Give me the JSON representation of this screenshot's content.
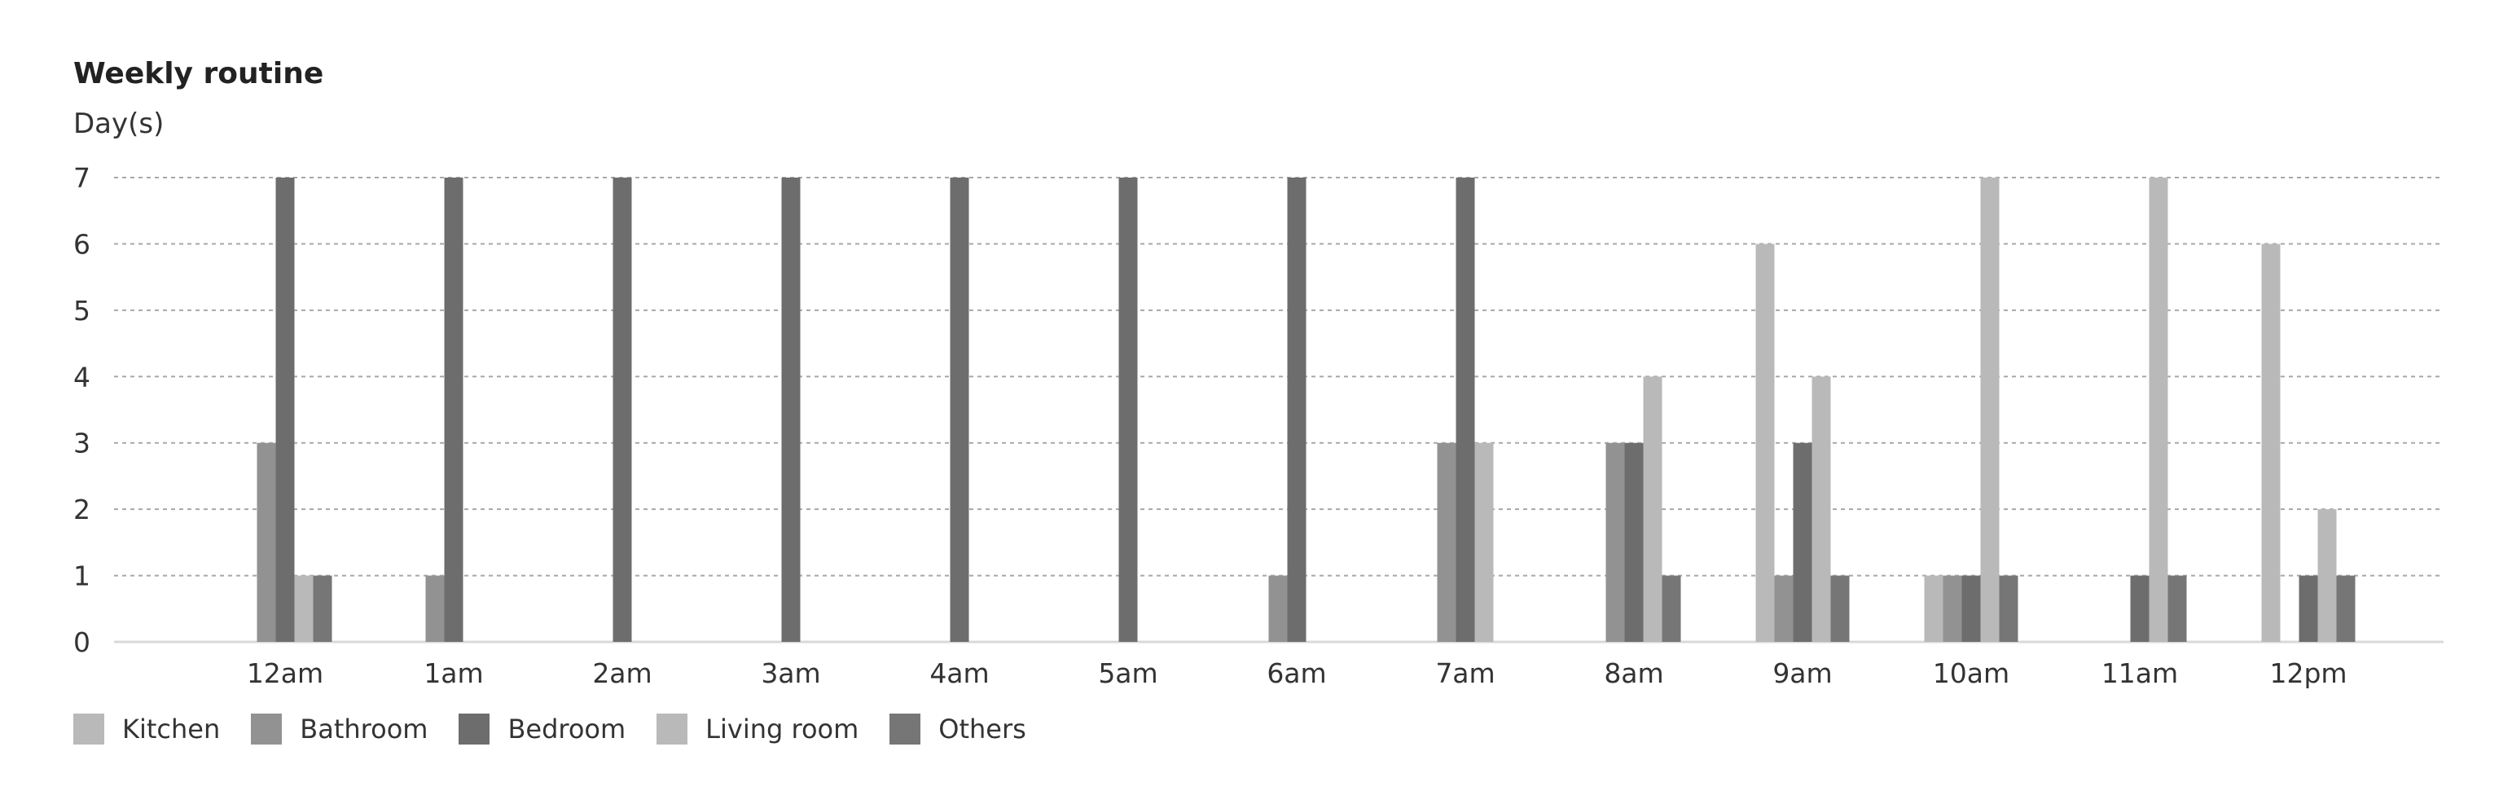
{
  "chart_data": {
    "type": "bar",
    "title": "Weekly routine",
    "ylabel": "Day(s)",
    "xlabel": "",
    "ylim": [
      0,
      7
    ],
    "yticks": [
      0,
      1,
      2,
      3,
      4,
      5,
      6,
      7
    ],
    "grid": true,
    "legend_position": "bottom-left",
    "categories": [
      "12am",
      "1am",
      "2am",
      "3am",
      "4am",
      "5am",
      "6am",
      "7am",
      "8am",
      "9am",
      "10am",
      "11am",
      "12pm"
    ],
    "series": [
      {
        "name": "Kitchen",
        "color": "#b9b9b9",
        "values": [
          0,
          0,
          0,
          0,
          0,
          0,
          0,
          0,
          0,
          6,
          1,
          0,
          6
        ]
      },
      {
        "name": "Bathroom",
        "color": "#929292",
        "values": [
          3,
          1,
          0,
          0,
          0,
          0,
          1,
          3,
          3,
          1,
          1,
          0,
          0
        ]
      },
      {
        "name": "Bedroom",
        "color": "#6d6d6d",
        "values": [
          7,
          7,
          7,
          7,
          7,
          7,
          7,
          7,
          3,
          3,
          1,
          1,
          1
        ]
      },
      {
        "name": "Living room",
        "color": "#b9b9b9",
        "values": [
          1,
          0,
          0,
          0,
          0,
          0,
          0,
          3,
          4,
          4,
          7,
          7,
          2
        ]
      },
      {
        "name": "Others",
        "color": "#767676",
        "values": [
          1,
          0,
          0,
          0,
          0,
          0,
          0,
          0,
          1,
          1,
          1,
          1,
          1
        ]
      }
    ]
  }
}
